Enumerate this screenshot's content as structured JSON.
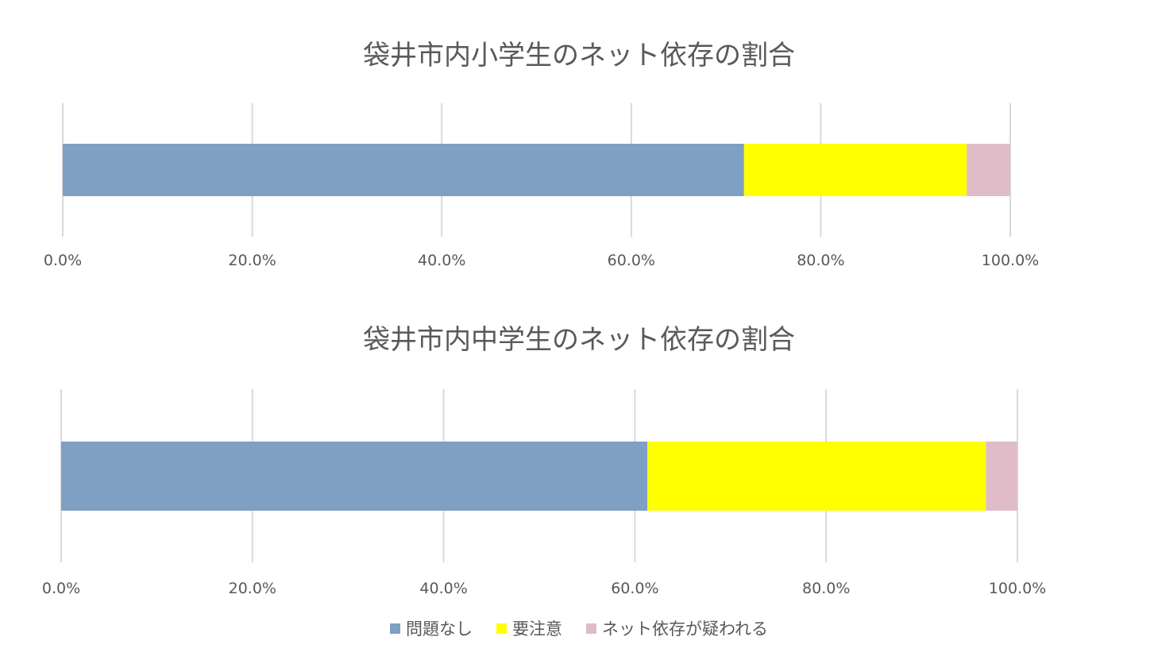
{
  "chart_data": [
    {
      "type": "bar",
      "orientation": "horizontal",
      "stacked": true,
      "title": "袋井市内小学生のネット依存の割合",
      "xlim": [
        0,
        100
      ],
      "tick_labels": [
        "0.0%",
        "20.0%",
        "40.0%",
        "60.0%",
        "80.0%",
        "100.0%"
      ],
      "grid": true,
      "series": [
        {
          "name": "問題なし",
          "values": [
            71.9
          ],
          "color": "#7f9fc3"
        },
        {
          "name": "要注意",
          "values": [
            23.5
          ],
          "color": "#ffff00"
        },
        {
          "name": "ネット依存が疑われる",
          "values": [
            4.6
          ],
          "color": "#e0bcc8"
        }
      ]
    },
    {
      "type": "bar",
      "orientation": "horizontal",
      "stacked": true,
      "title": "袋井市内中学生のネット依存の割合",
      "xlim": [
        0,
        100
      ],
      "tick_labels": [
        "0.0%",
        "20.0%",
        "40.0%",
        "60.0%",
        "80.0%",
        "100.0%"
      ],
      "grid": true,
      "series": [
        {
          "name": "問題なし",
          "values": [
            61.3
          ],
          "color": "#7f9fc3"
        },
        {
          "name": "要注意",
          "values": [
            35.4
          ],
          "color": "#ffff00"
        },
        {
          "name": "ネット依存が疑われる",
          "values": [
            3.3
          ],
          "color": "#e0bcc8"
        }
      ]
    }
  ],
  "legend": {
    "placement": "bottom",
    "items": [
      {
        "label": "問題なし",
        "color": "#7f9fc3"
      },
      {
        "label": "要注意",
        "color": "#ffff00"
      },
      {
        "label": "ネット依存が疑われる",
        "color": "#e0bcc8"
      }
    ]
  }
}
